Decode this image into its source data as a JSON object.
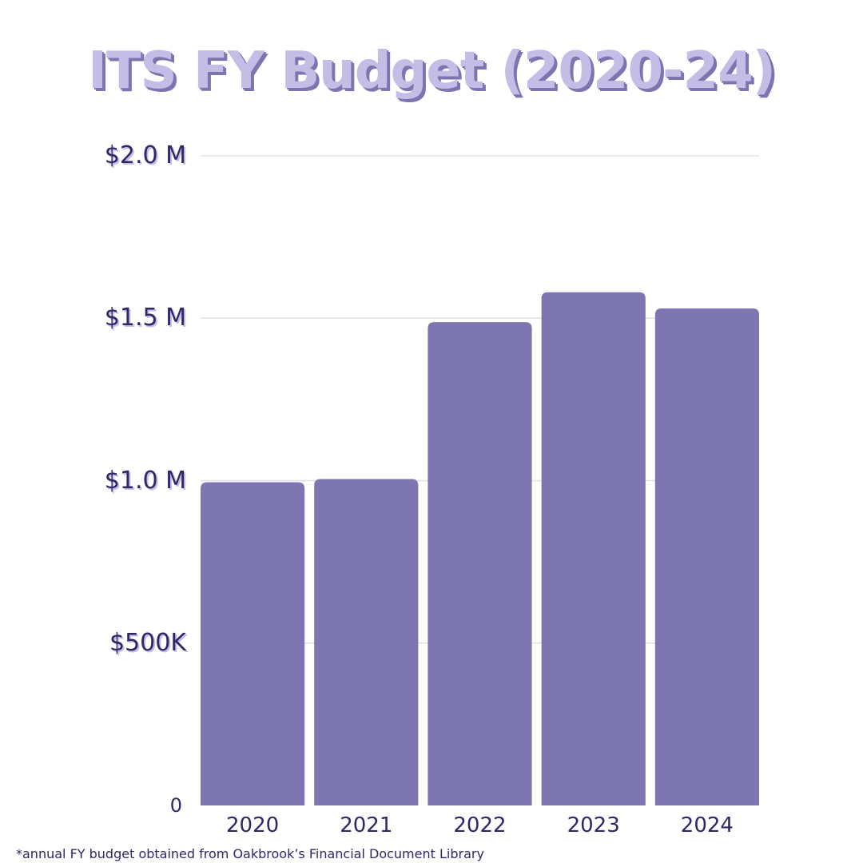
{
  "chart_data": {
    "type": "bar",
    "title": "ITS FY Budget (2020-24)",
    "xlabel": "",
    "ylabel": "",
    "categories": [
      "2020",
      "2021",
      "2022",
      "2023",
      "2024"
    ],
    "values": [
      995000,
      1005000,
      1488000,
      1580000,
      1530000
    ],
    "ylim": [
      0,
      2000000
    ],
    "yticks": [
      0,
      500000,
      1000000,
      1500000,
      2000000
    ],
    "ytick_labels": [
      "0",
      "$500K",
      "$1.0 M",
      "$1.5 M",
      "$2.0 M"
    ],
    "grid": true,
    "bar_color": "#7e76b0",
    "title_color": "#c4bde6",
    "label_color": "#2f2766"
  },
  "footnote": "*annual FY budget obtained from Oakbrook’s Financial Document Library"
}
